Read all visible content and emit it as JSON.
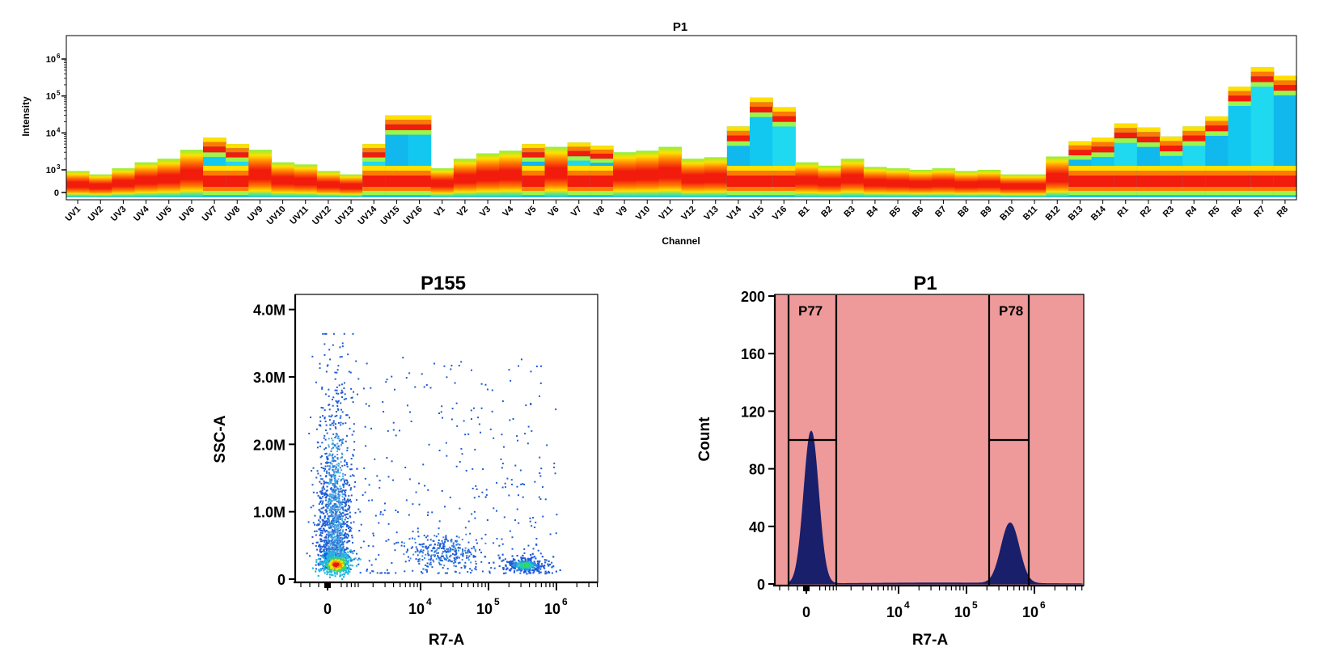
{
  "chart_data": [
    {
      "type": "heatmap",
      "title": "P1",
      "xlabel": "Channel",
      "ylabel": "Intensity",
      "y_scale": "log",
      "y_ticks": [
        {
          "value": 0,
          "label": "0",
          "exp": ""
        },
        {
          "value": 1000,
          "label": "10",
          "exp": "3"
        },
        {
          "value": 10000,
          "label": "10",
          "exp": "4"
        },
        {
          "value": 100000,
          "label": "10",
          "exp": "5"
        },
        {
          "value": 1000000,
          "label": "10",
          "exp": "6"
        }
      ],
      "categories": [
        "UV1",
        "UV2",
        "UV3",
        "UV4",
        "UV5",
        "UV6",
        "UV7",
        "UV8",
        "UV9",
        "UV10",
        "UV11",
        "UV12",
        "UV13",
        "UV14",
        "UV15",
        "UV16",
        "V1",
        "V2",
        "V3",
        "V4",
        "V5",
        "V6",
        "V7",
        "V8",
        "V9",
        "V10",
        "V11",
        "V12",
        "V13",
        "V14",
        "V15",
        "V16",
        "B1",
        "B2",
        "B3",
        "B4",
        "B5",
        "B6",
        "B7",
        "B8",
        "B9",
        "B10",
        "B11",
        "B12",
        "B13",
        "B14",
        "R1",
        "R2",
        "R3",
        "R4",
        "R5",
        "R6",
        "R7",
        "R8"
      ],
      "max_intensity": [
        950,
        800,
        1100,
        1600,
        2000,
        3500,
        7500,
        5000,
        3500,
        1600,
        1400,
        950,
        800,
        5000,
        30000,
        30000,
        1100,
        2000,
        2800,
        3300,
        5000,
        4200,
        5500,
        4500,
        3000,
        3300,
        4200,
        2000,
        2200,
        15000,
        90000,
        50000,
        1600,
        1300,
        2000,
        1200,
        1100,
        1000,
        1100,
        950,
        1000,
        800,
        800,
        2300,
        6000,
        7500,
        18000,
        14000,
        8000,
        15000,
        28000,
        180000,
        600000,
        350000
      ],
      "grid": false
    },
    {
      "type": "scatter",
      "title": "P155",
      "xlabel": "R7-A",
      "ylabel": "SSC-A",
      "x_scale": "biexponential",
      "y_ticks": [
        "0",
        "1.0M",
        "2.0M",
        "3.0M",
        "4.0M"
      ],
      "x_ticks": [
        {
          "label": "0",
          "exp": ""
        },
        {
          "label": "10",
          "exp": "4"
        },
        {
          "label": "10",
          "exp": "5"
        },
        {
          "label": "10",
          "exp": "6"
        }
      ],
      "ylim": [
        0,
        4200000
      ],
      "populations": [
        {
          "x_center": 300,
          "y_center": 250000,
          "density": "high"
        },
        {
          "x_center": 800,
          "y_center": 1500000,
          "density": "medium"
        },
        {
          "x_center": 400000,
          "y_center": 230000,
          "density": "high"
        },
        {
          "x_center": 30000,
          "y_center": 400000,
          "density": "low"
        }
      ],
      "grid": false
    },
    {
      "type": "area",
      "title": "P1",
      "xlabel": "R7-A",
      "ylabel": "Count",
      "x_scale": "biexponential",
      "y_ticks": [
        "0",
        "40",
        "80",
        "120",
        "160",
        "200"
      ],
      "x_ticks": [
        {
          "label": "0",
          "exp": ""
        },
        {
          "label": "10",
          "exp": "4"
        },
        {
          "label": "10",
          "exp": "5"
        },
        {
          "label": "10",
          "exp": "6"
        }
      ],
      "ylim": [
        0,
        200
      ],
      "peaks": [
        {
          "x": 300,
          "count": 106
        },
        {
          "x": 400000,
          "count": 42
        }
      ],
      "gates": [
        {
          "name": "P77",
          "level": 100
        },
        {
          "name": "P78",
          "level": 100
        }
      ],
      "colors": {
        "fill": "#1a1f6b",
        "background": "#ee9a9a"
      },
      "grid": false
    }
  ]
}
